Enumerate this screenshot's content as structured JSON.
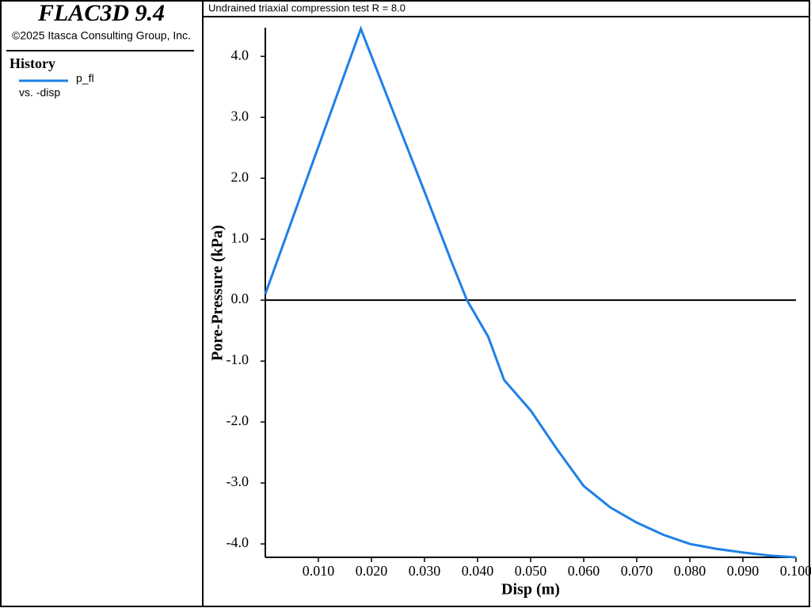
{
  "app": {
    "title": "FLAC3D 9.4",
    "copyright": "©2025 Itasca Consulting Group, Inc."
  },
  "history": {
    "heading": "History",
    "x_label": "vs. -disp"
  },
  "chart_data": {
    "type": "line",
    "title": "Undrained triaxial compression test R = 8.0",
    "xlabel": "Disp (m)",
    "ylabel": "Pore-Pressure (kPa)",
    "x": [
      0,
      0.018,
      0.025,
      0.03,
      0.035,
      0.038,
      0.042,
      0.045,
      0.05,
      0.055,
      0.06,
      0.065,
      0.07,
      0.075,
      0.08,
      0.085,
      0.09,
      0.095,
      0.1
    ],
    "series": [
      {
        "name": "p_fl",
        "color": "#1e80e6",
        "values": [
          0.1,
          4.45,
          2.89,
          1.78,
          0.65,
          0,
          -0.6,
          -1.31,
          -1.81,
          -2.45,
          -3.05,
          -3.4,
          -3.65,
          -3.85,
          -4.0,
          -4.08,
          -4.14,
          -4.19,
          -4.22
        ]
      }
    ],
    "xlim": [
      0,
      0.1
    ],
    "ylim": [
      -4.22,
      4.47
    ],
    "xticks": [
      {
        "value": 0.01,
        "label": "0.010"
      },
      {
        "value": 0.02,
        "label": "0.020"
      },
      {
        "value": 0.03,
        "label": "0.030"
      },
      {
        "value": 0.04,
        "label": "0.040"
      },
      {
        "value": 0.05,
        "label": "0.050"
      },
      {
        "value": 0.06,
        "label": "0.060"
      },
      {
        "value": 0.07,
        "label": "0.070"
      },
      {
        "value": 0.08,
        "label": "0.080"
      },
      {
        "value": 0.09,
        "label": "0.090"
      },
      {
        "value": 0.1,
        "label": "0.100"
      }
    ],
    "yticks": [
      {
        "value": -4,
        "label": "-4.0"
      },
      {
        "value": -3,
        "label": "-3.0"
      },
      {
        "value": -2,
        "label": "-2.0"
      },
      {
        "value": -1,
        "label": "-1.0"
      },
      {
        "value": 0,
        "label": "0.0"
      },
      {
        "value": 1,
        "label": "1.0"
      },
      {
        "value": 2,
        "label": "2.0"
      },
      {
        "value": 3,
        "label": "3.0"
      },
      {
        "value": 4,
        "label": "4.0"
      }
    ]
  }
}
